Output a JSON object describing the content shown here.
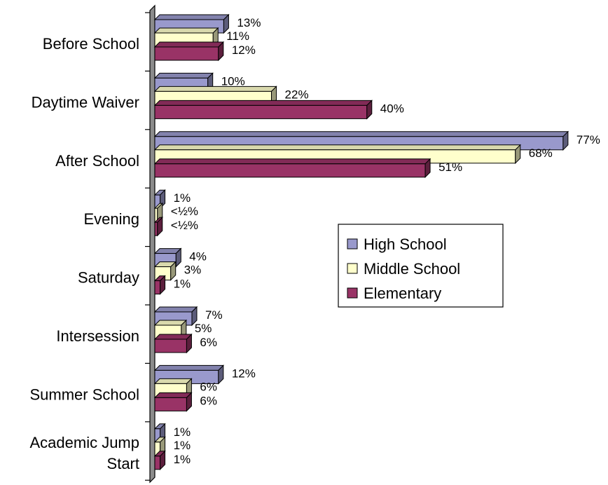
{
  "chart_data": {
    "type": "bar",
    "orientation": "horizontal",
    "style": "3d",
    "categories": [
      "Before School",
      "Daytime Waiver",
      "After School",
      "Evening",
      "Saturday",
      "Intersession",
      "Summer School",
      "Academic Jump Start"
    ],
    "category_lines": [
      [
        "Before School"
      ],
      [
        "Daytime Waiver"
      ],
      [
        "After School"
      ],
      [
        "Evening"
      ],
      [
        "Saturday"
      ],
      [
        "Intersession"
      ],
      [
        "Summer School"
      ],
      [
        "Academic Jump",
        "Start"
      ]
    ],
    "series": [
      {
        "name": "High School",
        "color": "#9999cc",
        "values": [
          13,
          10,
          77,
          1,
          4,
          7,
          12,
          1
        ],
        "labels": [
          "13%",
          "10%",
          "77%",
          "1%",
          "4%",
          "7%",
          "12%",
          "1%"
        ]
      },
      {
        "name": "Middle School",
        "color": "#ffffcc",
        "values": [
          11,
          22,
          68,
          0.5,
          3,
          5,
          6,
          1
        ],
        "labels": [
          "11%",
          "22%",
          "68%",
          "<½%",
          "3%",
          "5%",
          "6%",
          "1%"
        ]
      },
      {
        "name": "Elementary",
        "color": "#993366",
        "values": [
          12,
          40,
          51,
          0.5,
          1,
          6,
          6,
          1
        ],
        "labels": [
          "12%",
          "40%",
          "51%",
          "<½%",
          "1%",
          "6%",
          "6%",
          "1%"
        ]
      }
    ],
    "xlim": [
      0,
      77
    ],
    "legend_position": "right",
    "grid": false,
    "title": "",
    "xlabel": "",
    "ylabel": ""
  }
}
